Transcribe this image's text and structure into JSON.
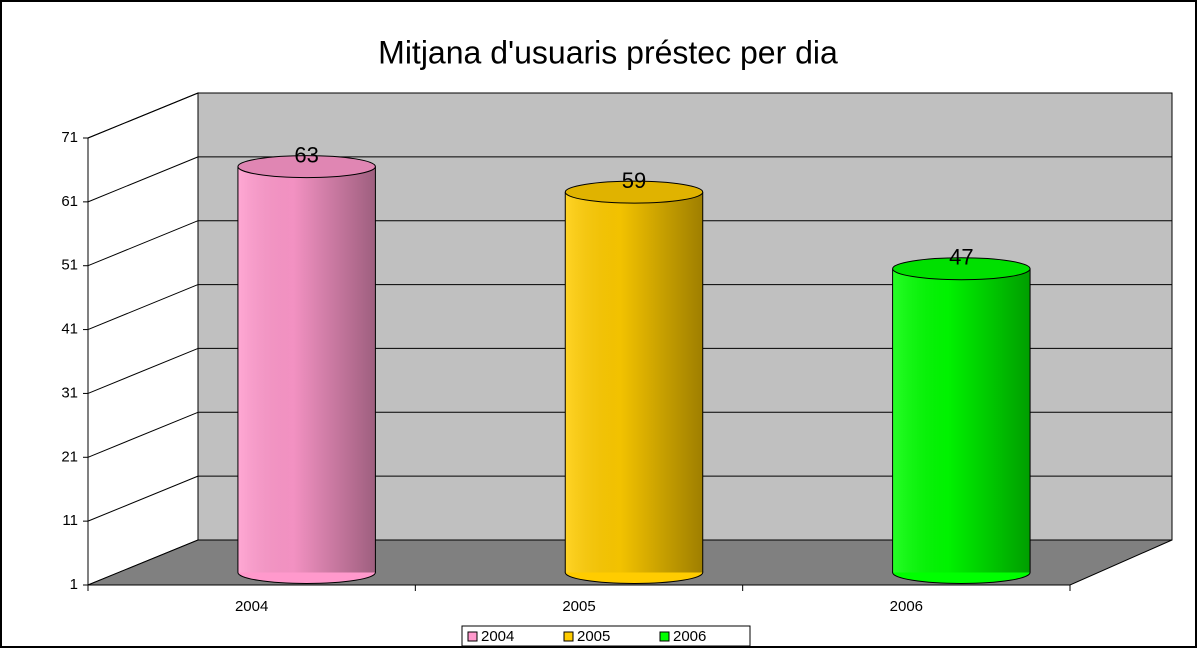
{
  "chart_data": {
    "type": "bar3d",
    "title": "Mitjana d'usuaris préstec per dia",
    "categories": [
      "2004",
      "2005",
      "2006"
    ],
    "values": [
      63,
      59,
      47
    ],
    "colors": [
      "#ff99cc",
      "#ffcc00",
      "#00ff00"
    ],
    "ylim": [
      1,
      71
    ],
    "yticks": [
      1,
      11,
      21,
      31,
      41,
      51,
      61,
      71
    ],
    "grid": true,
    "legend": "bottom"
  }
}
